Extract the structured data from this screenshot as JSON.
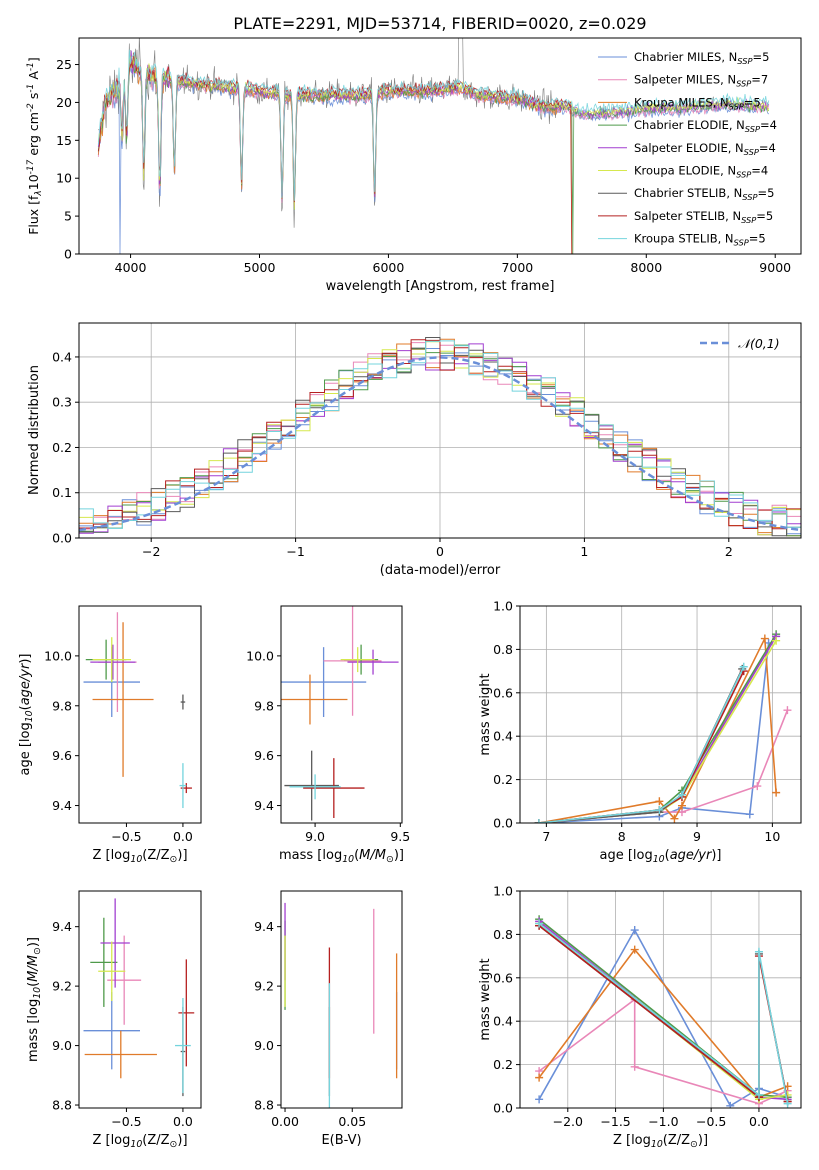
{
  "figure": {
    "title": "PLATE=2291, MJD=53714, FIBERID=0020, z=0.029"
  },
  "series_meta": {
    "names": [
      "Chabrier MILES, N$_{SSP}$=5",
      "Salpeter MILES, N$_{SSP}$=7",
      "Kroupa MILES, N$_{SSP}$=5",
      "Chabrier ELODIE, N$_{SSP}$=4",
      "Salpeter ELODIE, N$_{SSP}$=4",
      "Kroupa ELODIE, N$_{SSP}$=4",
      "Chabrier STELIB, N$_{SSP}$=5",
      "Salpeter STELIB, N$_{SSP}$=5",
      "Kroupa STELIB, N$_{SSP}$=5"
    ],
    "colors": [
      "#6a8fd8",
      "#e987b8",
      "#e07b2a",
      "#4f9a4a",
      "#a23fd0",
      "#d6e84e",
      "#5a5a5a",
      "#b52020",
      "#74d4dd"
    ]
  },
  "chart_data": [
    {
      "id": "spectrum",
      "type": "line",
      "xlabel": "wavelength [Angstrom, rest frame]",
      "ylabel": "Flux [f$_\\lambda$10$^{-17}$ erg cm$^{-2}$ s$^{-1}$ A$^{-1}$]",
      "xlim": [
        3600,
        9200
      ],
      "ylim": [
        0,
        28.5
      ],
      "xticks": [
        4000,
        5000,
        6000,
        7000,
        8000,
        9000
      ],
      "yticks": [
        0,
        5,
        10,
        15,
        20,
        25
      ],
      "legend": "top-right",
      "anchors": {
        "x": [
          3750,
          3800,
          3900,
          4000,
          4100,
          4200,
          4300,
          4500,
          4800,
          5000,
          5200,
          5500,
          5800,
          6000,
          6300,
          6563,
          6700,
          7000,
          7200,
          7400,
          7500,
          7800,
          8000,
          8300,
          8600,
          8800,
          8950
        ],
        "y": [
          14,
          20,
          22,
          25.5,
          24,
          23.5,
          23,
          22.5,
          22,
          21.5,
          21,
          21,
          21,
          21.5,
          21.5,
          22,
          21,
          20.5,
          19.5,
          19.5,
          18.5,
          18.8,
          19.3,
          19.3,
          19.8,
          19.6,
          19.6
        ]
      },
      "absorption_dips": [
        [
          3934,
          10
        ],
        [
          3969,
          12
        ],
        [
          4102,
          16
        ],
        [
          4226,
          19
        ],
        [
          4340,
          15
        ],
        [
          4861,
          16
        ],
        [
          5175,
          17
        ],
        [
          5270,
          18.5
        ],
        [
          5893,
          17
        ]
      ],
      "model_drops_to_zero": [
        [
          3920,
          5
        ],
        [
          5850,
          5
        ],
        [
          6800,
          5
        ],
        [
          7430,
          5
        ]
      ]
    },
    {
      "id": "residual_hist",
      "type": "step-histogram",
      "xlabel": "(data-model)/error",
      "ylabel": "Normed distribution",
      "xlim": [
        -2.5,
        2.5
      ],
      "ylim": [
        0,
        0.475
      ],
      "xticks": [
        -2,
        -1,
        0,
        1,
        2
      ],
      "yticks": [
        0,
        0.1,
        0.2,
        0.3,
        0.4
      ],
      "bin_width": 0.1,
      "reference": {
        "name": "$\\mathcal{N}(0,1)$",
        "style": "dashed",
        "color": "#6a8fd8"
      },
      "legend": "top-right",
      "grid": true
    },
    {
      "id": "Z_age",
      "type": "errorbar",
      "xlabel": "Z [log$_{10}$(Z/Z$_\\odot$)]",
      "ylabel": "age  [log$_{10}$($age/yr$)]",
      "xlim": [
        -0.92,
        0.16
      ],
      "ylim": [
        9.33,
        10.2
      ],
      "xticks": [
        -0.5,
        0.0
      ],
      "yticks": [
        9.4,
        9.6,
        9.8,
        10.0
      ],
      "points": [
        {
          "x": -0.63,
          "xerr": 0.25,
          "y": 9.895,
          "yerr": 0.14
        },
        {
          "x": -0.58,
          "xerr": 0.17,
          "y": 9.975,
          "yerr": 0.2
        },
        {
          "x": -0.53,
          "xerr": 0.27,
          "y": 9.825,
          "yerr": 0.31
        },
        {
          "x": -0.68,
          "xerr": 0.18,
          "y": 9.985,
          "yerr": 0.08
        },
        {
          "x": -0.62,
          "xerr": 0.2,
          "y": 9.975,
          "yerr": 0.07
        },
        {
          "x": -0.63,
          "xerr": 0.17,
          "y": 9.985,
          "yerr": 0.09
        },
        {
          "x": 0.0,
          "xerr": 0.02,
          "y": 9.815,
          "yerr": 0.03
        },
        {
          "x": 0.03,
          "xerr": 0.05,
          "y": 9.47,
          "yerr": 0.02
        },
        {
          "x": 0.0,
          "xerr": 0.03,
          "y": 9.48,
          "yerr": 0.09
        }
      ]
    },
    {
      "id": "mass_age",
      "type": "errorbar",
      "xlabel": "mass [log$_{10}$($M/M_\\odot$)]",
      "ylabel": "",
      "xlim": [
        8.8,
        9.51
      ],
      "ylim": [
        9.33,
        10.2
      ],
      "xticks": [
        9.0,
        9.5
      ],
      "yticks": [
        9.4,
        9.6,
        9.8,
        10.0
      ],
      "points": [
        {
          "x": 9.05,
          "xerr": 0.25,
          "y": 9.895,
          "yerr": 0.14
        },
        {
          "x": 9.22,
          "xerr": 0.17,
          "y": 9.98,
          "yerr": 0.22
        },
        {
          "x": 8.97,
          "xerr": 0.22,
          "y": 9.825,
          "yerr": 0.1
        },
        {
          "x": 9.27,
          "xerr": 0.1,
          "y": 9.985,
          "yerr": 0.06
        },
        {
          "x": 9.34,
          "xerr": 0.15,
          "y": 9.975,
          "yerr": 0.05
        },
        {
          "x": 9.25,
          "xerr": 0.1,
          "y": 9.985,
          "yerr": 0.05
        },
        {
          "x": 8.98,
          "xerr": 0.16,
          "y": 9.48,
          "yerr": 0.14
        },
        {
          "x": 9.11,
          "xerr": 0.18,
          "y": 9.47,
          "yerr": 0.12
        },
        {
          "x": 9.0,
          "xerr": 0.15,
          "y": 9.475,
          "yerr": 0.05
        }
      ]
    },
    {
      "id": "age_weight",
      "type": "line",
      "xlabel": "age  [log$_{10}$($age/yr$)]",
      "ylabel": "mass weight",
      "xlim": [
        6.65,
        10.38
      ],
      "ylim": [
        0,
        1.0
      ],
      "xticks": [
        7,
        8,
        9,
        10
      ],
      "yticks": [
        0,
        0.2,
        0.4,
        0.6,
        0.8,
        1.0
      ],
      "grid": true,
      "series": [
        {
          "x": [
            6.9,
            8.5,
            8.8,
            9.7,
            9.95
          ],
          "y": [
            0.0,
            0.03,
            0.07,
            0.04,
            0.83
          ]
        },
        {
          "x": [
            6.9,
            8.5,
            8.8,
            9.8,
            10.2
          ],
          "y": [
            0.0,
            0.05,
            0.05,
            0.17,
            0.52
          ]
        },
        {
          "x": [
            6.9,
            8.5,
            8.7,
            8.8,
            9.9,
            10.05
          ],
          "y": [
            0.0,
            0.1,
            0.02,
            0.08,
            0.85,
            0.14
          ]
        },
        {
          "x": [
            6.9,
            8.5,
            8.8,
            10.05
          ],
          "y": [
            0.0,
            0.06,
            0.15,
            0.87
          ]
        },
        {
          "x": [
            6.9,
            8.5,
            8.8,
            10.05
          ],
          "y": [
            0.0,
            0.05,
            0.13,
            0.86
          ]
        },
        {
          "x": [
            6.9,
            8.5,
            8.8,
            10.05
          ],
          "y": [
            0.0,
            0.05,
            0.12,
            0.84
          ]
        },
        {
          "x": [
            6.9,
            8.5,
            8.8,
            9.6
          ],
          "y": [
            0.0,
            0.05,
            0.13,
            0.71
          ]
        },
        {
          "x": [
            6.9,
            8.5,
            8.8,
            9.62
          ],
          "y": [
            0.0,
            0.06,
            0.12,
            0.7
          ]
        },
        {
          "x": [
            6.9,
            8.5,
            8.8,
            9.62
          ],
          "y": [
            0.0,
            0.06,
            0.13,
            0.72
          ]
        }
      ]
    },
    {
      "id": "Z_mass",
      "type": "errorbar",
      "xlabel": "Z [log$_{10}$(Z/Z$_\\odot$)]",
      "ylabel": "mass [log$_{10}$($M/M_\\odot$)]",
      "xlim": [
        -0.92,
        0.16
      ],
      "ylim": [
        8.79,
        9.52
      ],
      "xticks": [
        -0.5,
        0.0
      ],
      "yticks": [
        8.8,
        9.0,
        9.2,
        9.4
      ],
      "points": [
        {
          "x": -0.63,
          "xerr": 0.25,
          "y": 9.05,
          "yerr": 0.13
        },
        {
          "x": -0.52,
          "xerr": 0.15,
          "y": 9.22,
          "yerr": 0.15
        },
        {
          "x": -0.55,
          "xerr": 0.32,
          "y": 8.97,
          "yerr": 0.08
        },
        {
          "x": -0.7,
          "xerr": 0.12,
          "y": 9.28,
          "yerr": 0.15
        },
        {
          "x": -0.6,
          "xerr": 0.13,
          "y": 9.345,
          "yerr": 0.15
        },
        {
          "x": -0.63,
          "xerr": 0.12,
          "y": 9.25,
          "yerr": 0.1
        },
        {
          "x": 0.0,
          "xerr": 0.02,
          "y": 8.98,
          "yerr": 0.15
        },
        {
          "x": 0.03,
          "xerr": 0.07,
          "y": 9.11,
          "yerr": 0.18
        },
        {
          "x": 0.0,
          "xerr": 0.07,
          "y": 9.0,
          "yerr": 0.16
        }
      ]
    },
    {
      "id": "EBV_mass",
      "type": "errorbar",
      "xlabel": "E(B-V)",
      "ylabel": "",
      "xlim": [
        -0.003,
        0.087
      ],
      "ylim": [
        8.79,
        9.52
      ],
      "xticks": [
        0.0,
        0.05
      ],
      "yticks": [
        8.8,
        9.0,
        9.2,
        9.4
      ],
      "points": [
        {
          "x": 0.083,
          "xerr": 0.0,
          "y": 9.05,
          "yerr": 0.13
        },
        {
          "x": 0.066,
          "xerr": 0.0,
          "y": 9.25,
          "yerr": 0.21
        },
        {
          "x": 0.083,
          "xerr": 0.0,
          "y": 9.1,
          "yerr": 0.21
        },
        {
          "x": 0.0,
          "xerr": 0.0,
          "y": 9.27,
          "yerr": 0.15
        },
        {
          "x": 0.0,
          "xerr": 0.0,
          "y": 9.35,
          "yerr": 0.13
        },
        {
          "x": 0.0,
          "xerr": 0.0,
          "y": 9.25,
          "yerr": 0.12
        },
        {
          "x": 0.033,
          "xerr": 0.0,
          "y": 8.98,
          "yerr": 0.15
        },
        {
          "x": 0.033,
          "xerr": 0.0,
          "y": 9.11,
          "yerr": 0.22
        },
        {
          "x": 0.033,
          "xerr": 0.0,
          "y": 9.0,
          "yerr": 0.21
        }
      ]
    },
    {
      "id": "Z_weight",
      "type": "line",
      "xlabel": "Z [log$_{10}$(Z/Z$_\\odot$)]",
      "ylabel": "mass weight",
      "xlim": [
        -2.5,
        0.44
      ],
      "ylim": [
        0,
        1.0
      ],
      "xticks": [
        -2.0,
        -1.5,
        -1.0,
        -0.5,
        0.0
      ],
      "yticks": [
        0,
        0.2,
        0.4,
        0.6,
        0.8,
        1.0
      ],
      "grid": true,
      "series": [
        {
          "x": [
            -2.3,
            -1.3,
            -0.3,
            0.0,
            0.3
          ],
          "y": [
            0.04,
            0.82,
            0.01,
            0.09,
            0.05
          ]
        },
        {
          "x": [
            -2.3,
            -1.3,
            -1.3,
            0.0,
            0.3
          ],
          "y": [
            0.17,
            0.5,
            0.19,
            0.02,
            0.08
          ]
        },
        {
          "x": [
            -2.3,
            -1.3,
            0.0,
            0.3
          ],
          "y": [
            0.14,
            0.73,
            0.05,
            0.1
          ]
        },
        {
          "x": [
            -2.3,
            0.0,
            0.3
          ],
          "y": [
            0.87,
            0.06,
            0.05
          ]
        },
        {
          "x": [
            -2.3,
            0.0,
            0.3
          ],
          "y": [
            0.86,
            0.05,
            0.04
          ]
        },
        {
          "x": [
            -2.3,
            0.0,
            0.3
          ],
          "y": [
            0.85,
            0.04,
            0.06
          ]
        },
        {
          "x": [
            -2.3,
            0.0,
            0.0,
            0.3
          ],
          "y": [
            0.84,
            0.05,
            0.71,
            0.03
          ]
        },
        {
          "x": [
            -2.3,
            0.0,
            0.0,
            0.3
          ],
          "y": [
            0.84,
            0.05,
            0.7,
            0.03
          ]
        },
        {
          "x": [
            -2.3,
            0.0,
            0.0,
            0.3
          ],
          "y": [
            0.85,
            0.06,
            0.72,
            0.02
          ]
        }
      ]
    }
  ]
}
